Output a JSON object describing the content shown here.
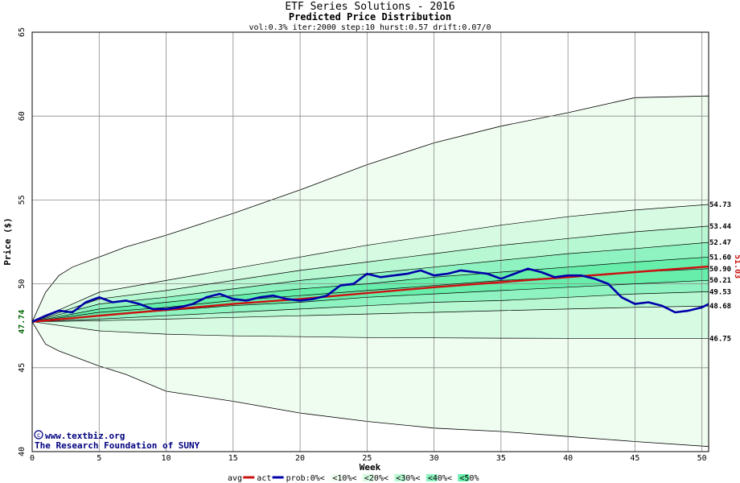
{
  "chart_data": {
    "type": "area",
    "title": "ETF Series Solutions - 2016",
    "subtitle": "Predicted Price Distribution",
    "params": "vol:0.3% iter:2000 step:10 hurst:0.57 drift:0.07/0",
    "xlabel": "Week",
    "ylabel": "Price ($)",
    "xlim": [
      0,
      50.5
    ],
    "ylim": [
      40,
      65
    ],
    "xticks": [
      "0",
      "5",
      "10",
      "15",
      "20",
      "25",
      "30",
      "35",
      "40",
      "45",
      "50"
    ],
    "yticks": [
      "40",
      "45",
      "50",
      "55",
      "60",
      "65"
    ],
    "grid": true,
    "start_price": "47.74",
    "actual_end_price": "51.03",
    "watermark_url": "www.textbiz.org",
    "watermark_org": "The Research Foundation of SUNY",
    "band_edges": {
      "x": [
        0,
        1,
        2,
        3,
        5,
        7,
        10,
        15,
        20,
        25,
        30,
        35,
        40,
        45,
        50.5
      ],
      "upper": [
        47.74,
        49.5,
        50.5,
        51.0,
        51.6,
        52.2,
        52.9,
        54.2,
        55.6,
        57.1,
        58.4,
        59.4,
        60.2,
        61.1,
        61.2
      ],
      "lower": [
        47.74,
        46.4,
        46.0,
        45.7,
        45.1,
        44.6,
        43.6,
        43.0,
        42.3,
        41.8,
        41.4,
        41.2,
        40.9,
        40.6,
        40.3
      ]
    },
    "percentile_lines": {
      "x": [
        0,
        5,
        10,
        15,
        20,
        25,
        30,
        35,
        40,
        45,
        50.5
      ],
      "levels": [
        {
          "end": "54.73",
          "values": [
            47.74,
            49.5,
            50.2,
            50.9,
            51.6,
            52.3,
            52.9,
            53.5,
            54.0,
            54.4,
            54.73
          ]
        },
        {
          "end": "53.44",
          "values": [
            47.74,
            49.1,
            49.6,
            50.2,
            50.8,
            51.3,
            51.8,
            52.3,
            52.7,
            53.1,
            53.44
          ]
        },
        {
          "end": "52.47",
          "values": [
            47.74,
            48.8,
            49.2,
            49.7,
            50.2,
            50.6,
            51.0,
            51.4,
            51.8,
            52.1,
            52.47
          ]
        },
        {
          "end": "51.60",
          "values": [
            47.74,
            48.5,
            48.9,
            49.3,
            49.7,
            50.0,
            50.4,
            50.7,
            51.0,
            51.3,
            51.6
          ]
        },
        {
          "end": "50.90",
          "values": [
            47.74,
            48.3,
            48.6,
            49.0,
            49.3,
            49.6,
            49.9,
            50.2,
            50.4,
            50.7,
            50.9
          ]
        },
        {
          "end": "50.21",
          "values": [
            47.74,
            48.1,
            48.4,
            48.7,
            48.9,
            49.2,
            49.4,
            49.6,
            49.8,
            50.0,
            50.21
          ]
        },
        {
          "end": "49.53",
          "values": [
            47.74,
            47.9,
            48.1,
            48.3,
            48.5,
            48.7,
            48.9,
            49.0,
            49.2,
            49.4,
            49.53
          ]
        },
        {
          "end": "48.68",
          "values": [
            47.74,
            47.8,
            47.9,
            48.0,
            48.1,
            48.2,
            48.3,
            48.4,
            48.5,
            48.6,
            48.68
          ]
        },
        {
          "end": "46.75",
          "values": [
            47.74,
            47.2,
            47.0,
            46.9,
            46.85,
            46.8,
            46.78,
            46.76,
            46.75,
            46.75,
            46.75
          ]
        }
      ]
    },
    "series": [
      {
        "name": "avg",
        "color": "#cc1111",
        "x": [
          0,
          5,
          10,
          15,
          20,
          25,
          30,
          35,
          40,
          45,
          50.5
        ],
        "values": [
          47.74,
          48.1,
          48.45,
          48.8,
          49.1,
          49.45,
          49.8,
          50.1,
          50.4,
          50.7,
          51.03
        ]
      },
      {
        "name": "act",
        "color": "#0000aa",
        "x": [
          0,
          1,
          2,
          3,
          4,
          5,
          6,
          7,
          8,
          9,
          10,
          11,
          12,
          13,
          14,
          15,
          16,
          17,
          18,
          19,
          20,
          21,
          22,
          23,
          24,
          25,
          26,
          27,
          28,
          29,
          30,
          31,
          32,
          33,
          34,
          35,
          36,
          37,
          38,
          39,
          40,
          41,
          42,
          43,
          44,
          45,
          46,
          47,
          48,
          49,
          50,
          50.5
        ],
        "values": [
          47.74,
          48.1,
          48.4,
          48.3,
          48.9,
          49.2,
          48.9,
          49.0,
          48.8,
          48.5,
          48.5,
          48.6,
          48.8,
          49.2,
          49.4,
          49.1,
          49.0,
          49.2,
          49.3,
          49.1,
          49.0,
          49.1,
          49.3,
          49.9,
          50.0,
          50.6,
          50.4,
          50.5,
          50.6,
          50.8,
          50.5,
          50.6,
          50.8,
          50.7,
          50.6,
          50.3,
          50.6,
          50.9,
          50.7,
          50.4,
          50.5,
          50.5,
          50.3,
          50.0,
          49.2,
          48.8,
          48.9,
          48.7,
          48.3,
          48.4,
          48.6,
          48.8
        ]
      }
    ],
    "legend": {
      "placement": "bottom",
      "items": [
        {
          "label": "avg",
          "kind": "line",
          "color": "#cc1111"
        },
        {
          "label": "act",
          "kind": "line",
          "color": "#0000aa"
        },
        {
          "label": "prob:0%<",
          "kind": "none",
          "color": ""
        },
        {
          "label": "<10%<",
          "kind": "swatch",
          "color": "#effdf0"
        },
        {
          "label": "<20%<",
          "kind": "swatch",
          "color": "#d6fbe2"
        },
        {
          "label": "<30%<",
          "kind": "swatch",
          "color": "#b7f8d2"
        },
        {
          "label": "<40%<",
          "kind": "swatch",
          "color": "#8ef3c0"
        },
        {
          "label": "<50%",
          "kind": "swatch",
          "color": "#66eeaa"
        }
      ]
    },
    "fill_colors": [
      "#effdf0",
      "#d6fbe2",
      "#b7f8d2",
      "#8ef3c0",
      "#66eeaa"
    ],
    "label_colors": {
      "axis_text": "#000000",
      "end_price": "#cc1111",
      "start_price": "#006600"
    }
  }
}
